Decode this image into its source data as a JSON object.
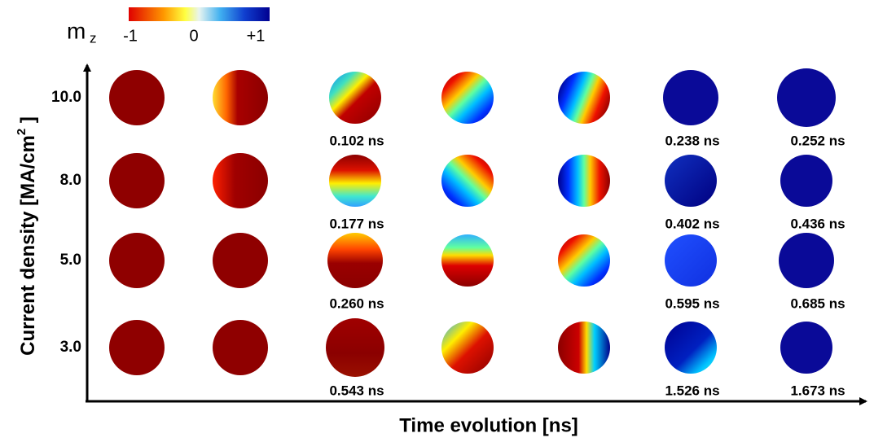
{
  "colorbar": {
    "label": "m",
    "label_subscript": "z",
    "ticks": [
      "-1",
      "0",
      "+1"
    ]
  },
  "y_axis_label": {
    "text": "Current density [MA/cm",
    "superscript": "2",
    "suffix": " ]"
  },
  "x_axis_label": "Time evolution [ns]",
  "rows": [
    {
      "label": "10.0",
      "times": [
        null,
        null,
        "0.102 ns",
        null,
        null,
        "0.238 ns",
        "0.252 ns"
      ]
    },
    {
      "label": "8.0",
      "times": [
        null,
        null,
        "0.177 ns",
        null,
        null,
        "0.402 ns",
        "0.436 ns"
      ]
    },
    {
      "label": "5.0",
      "times": [
        null,
        null,
        "0.260 ns",
        null,
        null,
        "0.595 ns",
        "0.685 ns"
      ]
    },
    {
      "label": "3.0",
      "times": [
        null,
        null,
        "0.543 ns",
        null,
        null,
        "1.526 ns",
        "1.673 ns"
      ]
    }
  ]
}
